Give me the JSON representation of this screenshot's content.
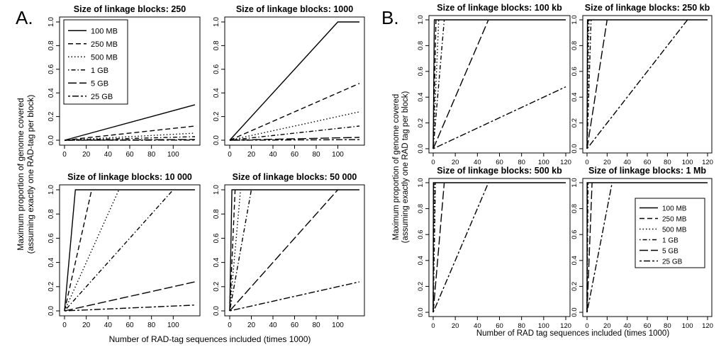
{
  "figure": {
    "panel_a_letter": "A.",
    "panel_b_letter": "B.",
    "panel_a_xlabel": "Number of RAD-tag sequences included (times 1000)",
    "panel_a_ylabel_line1": "Maximum proportion of genome covered",
    "panel_a_ylabel_line2": "(assuming exactly one RAD-tag per block)",
    "panel_b_xlabel": "Number of RAD tag sequences included (times 1000)",
    "panel_b_ylabel_line1": "Maximum proportion of genome covered",
    "panel_b_ylabel_line2": "(assuming exactly one RAD tag per block)"
  },
  "chart_data": [
    {
      "type": "line",
      "panel": "A",
      "title": "Size of linkage blocks: 250",
      "xlim": [
        0,
        120
      ],
      "ylim": [
        0,
        1
      ],
      "xticks": [
        "0",
        "20",
        "40",
        "60",
        "80",
        "100"
      ],
      "yticks": [
        "0.0",
        "0.2",
        "0.4",
        "0.6",
        "0.8",
        "1.0"
      ],
      "legend": "top-left",
      "series": [
        {
          "name": "100 MB",
          "dash": "solid",
          "x": [
            0,
            120
          ],
          "y": [
            0,
            0.3
          ]
        },
        {
          "name": "250 MB",
          "dash": "dashed",
          "x": [
            0,
            120
          ],
          "y": [
            0,
            0.12
          ]
        },
        {
          "name": "500 MB",
          "dash": "dotted",
          "x": [
            0,
            120
          ],
          "y": [
            0,
            0.06
          ]
        },
        {
          "name": "1 GB",
          "dash": "dotdash",
          "x": [
            0,
            120
          ],
          "y": [
            0,
            0.03
          ]
        },
        {
          "name": "5 GB",
          "dash": "longdash",
          "x": [
            0,
            120
          ],
          "y": [
            0,
            0.006
          ]
        },
        {
          "name": "25 GB",
          "dash": "twodash",
          "x": [
            0,
            120
          ],
          "y": [
            0,
            0.0012
          ]
        }
      ]
    },
    {
      "type": "line",
      "panel": "A",
      "title": "Size of linkage blocks: 1000",
      "xlim": [
        0,
        120
      ],
      "ylim": [
        0,
        1
      ],
      "xticks": [
        "0",
        "20",
        "40",
        "60",
        "80",
        "100"
      ],
      "yticks": [
        "0.0",
        "0.2",
        "0.4",
        "0.6",
        "0.8",
        "1.0"
      ],
      "series": [
        {
          "name": "100 MB",
          "dash": "solid",
          "x": [
            0,
            100,
            120
          ],
          "y": [
            0,
            1,
            1
          ]
        },
        {
          "name": "250 MB",
          "dash": "dashed",
          "x": [
            0,
            120
          ],
          "y": [
            0,
            0.48
          ]
        },
        {
          "name": "500 MB",
          "dash": "dotted",
          "x": [
            0,
            120
          ],
          "y": [
            0,
            0.24
          ]
        },
        {
          "name": "1 GB",
          "dash": "dotdash",
          "x": [
            0,
            120
          ],
          "y": [
            0,
            0.12
          ]
        },
        {
          "name": "5 GB",
          "dash": "longdash",
          "x": [
            0,
            120
          ],
          "y": [
            0,
            0.024
          ]
        },
        {
          "name": "25 GB",
          "dash": "twodash",
          "x": [
            0,
            120
          ],
          "y": [
            0,
            0.0048
          ]
        }
      ]
    },
    {
      "type": "line",
      "panel": "A",
      "title": "Size of linkage blocks: 10 000",
      "xlim": [
        0,
        120
      ],
      "ylim": [
        0,
        1
      ],
      "xticks": [
        "0",
        "20",
        "40",
        "60",
        "80",
        "100"
      ],
      "yticks": [
        "0.0",
        "0.2",
        "0.4",
        "0.6",
        "0.8",
        "1.0"
      ],
      "series": [
        {
          "name": "100 MB",
          "dash": "solid",
          "x": [
            0,
            10,
            120
          ],
          "y": [
            0,
            1,
            1
          ]
        },
        {
          "name": "250 MB",
          "dash": "dashed",
          "x": [
            0,
            25
          ],
          "y": [
            0,
            1
          ]
        },
        {
          "name": "500 MB",
          "dash": "dotted",
          "x": [
            0,
            50
          ],
          "y": [
            0,
            1
          ]
        },
        {
          "name": "1 GB",
          "dash": "dotdash",
          "x": [
            0,
            100
          ],
          "y": [
            0,
            1
          ]
        },
        {
          "name": "5 GB",
          "dash": "longdash",
          "x": [
            0,
            120
          ],
          "y": [
            0,
            0.24
          ]
        },
        {
          "name": "25 GB",
          "dash": "twodash",
          "x": [
            0,
            120
          ],
          "y": [
            0,
            0.048
          ]
        }
      ]
    },
    {
      "type": "line",
      "panel": "A",
      "title": "Size of linkage blocks: 50 000",
      "xlim": [
        0,
        120
      ],
      "ylim": [
        0,
        1
      ],
      "xticks": [
        "0",
        "20",
        "40",
        "60",
        "80",
        "100"
      ],
      "yticks": [
        "0.0",
        "0.2",
        "0.4",
        "0.6",
        "0.8",
        "1.0"
      ],
      "series": [
        {
          "name": "100 MB",
          "dash": "solid",
          "x": [
            0,
            2,
            120
          ],
          "y": [
            0,
            1,
            1
          ]
        },
        {
          "name": "250 MB",
          "dash": "dashed",
          "x": [
            0,
            5
          ],
          "y": [
            0,
            1
          ]
        },
        {
          "name": "500 MB",
          "dash": "dotted",
          "x": [
            0,
            10
          ],
          "y": [
            0,
            1
          ]
        },
        {
          "name": "1 GB",
          "dash": "dotdash",
          "x": [
            0,
            20
          ],
          "y": [
            0,
            1
          ]
        },
        {
          "name": "5 GB",
          "dash": "longdash",
          "x": [
            0,
            100
          ],
          "y": [
            0,
            1
          ]
        },
        {
          "name": "25 GB",
          "dash": "twodash",
          "x": [
            0,
            120
          ],
          "y": [
            0,
            0.24
          ]
        }
      ]
    },
    {
      "type": "line",
      "panel": "B",
      "title": "Size of linkage blocks:  100 kb",
      "xlim": [
        0,
        120
      ],
      "ylim": [
        0,
        1
      ],
      "xticks": [
        "0",
        "20",
        "40",
        "60",
        "80",
        "100",
        "120"
      ],
      "yticks": [
        "0.0",
        "0.2",
        "0.4",
        "0.6",
        "0.8",
        "1.0"
      ],
      "series": [
        {
          "name": "100 MB",
          "dash": "solid",
          "x": [
            0,
            1,
            120
          ],
          "y": [
            0,
            1,
            1
          ]
        },
        {
          "name": "250 MB",
          "dash": "dashed",
          "x": [
            0,
            2.5
          ],
          "y": [
            0,
            1
          ]
        },
        {
          "name": "500 MB",
          "dash": "dotted",
          "x": [
            0,
            5
          ],
          "y": [
            0,
            1
          ]
        },
        {
          "name": "1 GB",
          "dash": "dotdash",
          "x": [
            0,
            10
          ],
          "y": [
            0,
            1
          ]
        },
        {
          "name": "5 GB",
          "dash": "longdash",
          "x": [
            0,
            50
          ],
          "y": [
            0,
            1
          ]
        },
        {
          "name": "25 GB",
          "dash": "twodash",
          "x": [
            0,
            120
          ],
          "y": [
            0,
            0.48
          ]
        }
      ]
    },
    {
      "type": "line",
      "panel": "B",
      "title": "Size of linkage blocks:  250 kb",
      "xlim": [
        0,
        120
      ],
      "ylim": [
        0,
        1
      ],
      "xticks": [
        "0",
        "20",
        "40",
        "60",
        "80",
        "100",
        "120"
      ],
      "yticks": [
        "0.0",
        "0.2",
        "0.4",
        "0.6",
        "0.8",
        "1.0"
      ],
      "series": [
        {
          "name": "100 MB",
          "dash": "solid",
          "x": [
            0,
            0.4,
            120
          ],
          "y": [
            0,
            1,
            1
          ]
        },
        {
          "name": "250 MB",
          "dash": "dashed",
          "x": [
            0,
            1
          ],
          "y": [
            0,
            1
          ]
        },
        {
          "name": "500 MB",
          "dash": "dotted",
          "x": [
            0,
            2
          ],
          "y": [
            0,
            1
          ]
        },
        {
          "name": "1 GB",
          "dash": "dotdash",
          "x": [
            0,
            4
          ],
          "y": [
            0,
            1
          ]
        },
        {
          "name": "5 GB",
          "dash": "longdash",
          "x": [
            0,
            20
          ],
          "y": [
            0,
            1
          ]
        },
        {
          "name": "25 GB",
          "dash": "twodash",
          "x": [
            0,
            100
          ],
          "y": [
            0,
            1
          ]
        }
      ]
    },
    {
      "type": "line",
      "panel": "B",
      "title": "Size of linkage blocks:  500 kb",
      "xlim": [
        0,
        120
      ],
      "ylim": [
        0,
        1
      ],
      "xticks": [
        "0",
        "20",
        "40",
        "60",
        "80",
        "100",
        "120"
      ],
      "yticks": [
        "0.0",
        "0.2",
        "0.4",
        "0.6",
        "0.8",
        "1.0"
      ],
      "series": [
        {
          "name": "100 MB",
          "dash": "solid",
          "x": [
            0,
            0.2,
            120
          ],
          "y": [
            0,
            1,
            1
          ]
        },
        {
          "name": "250 MB",
          "dash": "dashed",
          "x": [
            0,
            0.5
          ],
          "y": [
            0,
            1
          ]
        },
        {
          "name": "500 MB",
          "dash": "dotted",
          "x": [
            0,
            1
          ],
          "y": [
            0,
            1
          ]
        },
        {
          "name": "1 GB",
          "dash": "dotdash",
          "x": [
            0,
            2
          ],
          "y": [
            0,
            1
          ]
        },
        {
          "name": "5 GB",
          "dash": "longdash",
          "x": [
            0,
            10
          ],
          "y": [
            0,
            1
          ]
        },
        {
          "name": "25 GB",
          "dash": "twodash",
          "x": [
            0,
            50
          ],
          "y": [
            0,
            1
          ]
        }
      ]
    },
    {
      "type": "line",
      "panel": "B",
      "title": "Size of linkage blocks:  1 Mb",
      "xlim": [
        0,
        120
      ],
      "ylim": [
        0,
        1
      ],
      "xticks": [
        "0",
        "20",
        "40",
        "60",
        "80",
        "100",
        "120"
      ],
      "yticks": [
        "0.0",
        "0.2",
        "0.4",
        "0.6",
        "0.8",
        "1.0"
      ],
      "legend": "center-right",
      "series": [
        {
          "name": "100 MB",
          "dash": "solid",
          "x": [
            0,
            0.1,
            120
          ],
          "y": [
            0,
            1,
            1
          ]
        },
        {
          "name": "250 MB",
          "dash": "dashed",
          "x": [
            0,
            0.25
          ],
          "y": [
            0,
            1
          ]
        },
        {
          "name": "500 MB",
          "dash": "dotted",
          "x": [
            0,
            0.5
          ],
          "y": [
            0,
            1
          ]
        },
        {
          "name": "1 GB",
          "dash": "dotdash",
          "x": [
            0,
            1
          ],
          "y": [
            0,
            1
          ]
        },
        {
          "name": "5 GB",
          "dash": "longdash",
          "x": [
            0,
            5
          ],
          "y": [
            0,
            1
          ]
        },
        {
          "name": "25 GB",
          "dash": "twodash",
          "x": [
            0,
            25
          ],
          "y": [
            0,
            1
          ]
        }
      ]
    }
  ]
}
